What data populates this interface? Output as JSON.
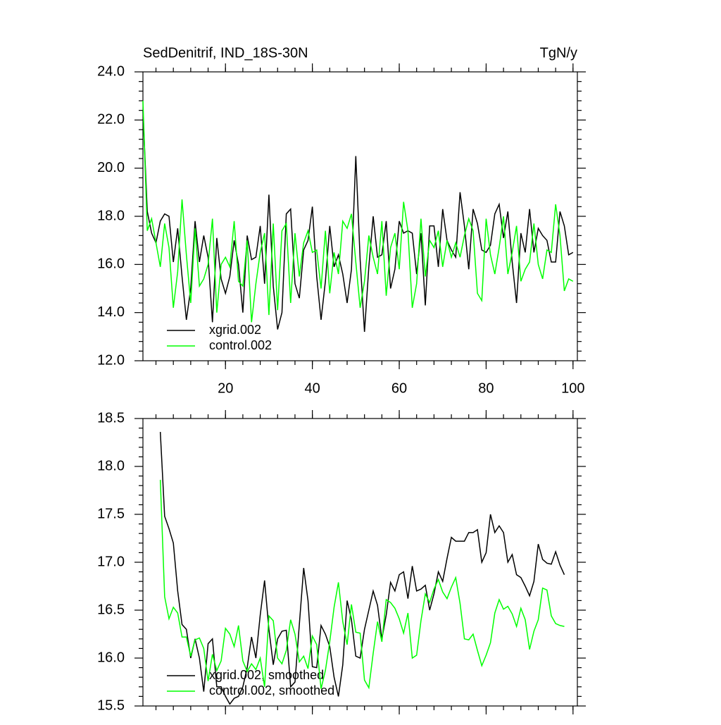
{
  "chart_data": [
    {
      "type": "line",
      "title": "SedDenitrif, IND_18S-30N",
      "right_title": "TgN/y",
      "x": [
        1,
        2,
        3,
        4,
        5,
        6,
        7,
        8,
        9,
        10,
        11,
        12,
        13,
        14,
        15,
        16,
        17,
        18,
        19,
        20,
        21,
        22,
        23,
        24,
        25,
        26,
        27,
        28,
        29,
        30,
        31,
        32,
        33,
        34,
        35,
        36,
        37,
        38,
        39,
        40,
        41,
        42,
        43,
        44,
        45,
        46,
        47,
        48,
        49,
        50,
        51,
        52,
        53,
        54,
        55,
        56,
        57,
        58,
        59,
        60,
        61,
        62,
        63,
        64,
        65,
        66,
        67,
        68,
        69,
        70,
        71,
        72,
        73,
        74,
        75,
        76,
        77,
        78,
        79,
        80,
        81,
        82,
        83,
        84,
        85,
        86,
        87,
        88,
        89,
        90,
        91,
        92,
        93,
        94,
        95,
        96,
        97,
        98,
        99,
        100
      ],
      "series": [
        {
          "name": "xgrid.002",
          "color": "#000000",
          "values": [
            22.4,
            18.2,
            17.3,
            16.9,
            17.8,
            18.1,
            18.0,
            16.1,
            17.5,
            15.5,
            13.7,
            15.0,
            17.8,
            16.1,
            17.2,
            16.3,
            13.6,
            17.1,
            15.4,
            14.8,
            15.5,
            17.0,
            16.0,
            14.0,
            17.2,
            16.2,
            16.3,
            17.6,
            15.2,
            18.9,
            15.1,
            13.3,
            14.0,
            18.1,
            18.3,
            15.2,
            14.6,
            16.6,
            17.0,
            18.4,
            15.5,
            13.7,
            15.3,
            17.6,
            15.9,
            16.4,
            15.6,
            14.4,
            15.8,
            20.5,
            16.2,
            13.2,
            15.9,
            18.0,
            16.3,
            16.4,
            17.8,
            15.0,
            15.8,
            17.8,
            17.3,
            17.4,
            17.3,
            15.6,
            17.3,
            14.3,
            17.6,
            17.6,
            15.9,
            18.3,
            17.0,
            16.6,
            16.3,
            19.0,
            17.6,
            15.8,
            18.3,
            17.7,
            16.6,
            16.5,
            16.8,
            18.1,
            18.5,
            17.1,
            18.2,
            16.1,
            14.4,
            17.3,
            16.5,
            18.3,
            16.5,
            17.5,
            17.2,
            17.0,
            16.1,
            16.1,
            18.2,
            17.6,
            16.4,
            16.5
          ]
        },
        {
          "name": "control.002",
          "color": "#00ff00",
          "values": [
            22.8,
            17.4,
            17.9,
            16.9,
            15.9,
            17.7,
            16.7,
            14.2,
            15.7,
            18.7,
            16.4,
            14.4,
            17.5,
            15.1,
            15.4,
            16.0,
            17.9,
            14.0,
            16.0,
            16.3,
            15.9,
            17.8,
            15.3,
            15.1,
            17.0,
            13.6,
            15.2,
            16.5,
            17.3,
            13.9,
            17.7,
            14.1,
            17.4,
            17.7,
            14.4,
            17.3,
            15.5,
            16.9,
            17.4,
            16.5,
            16.6,
            15.0,
            17.4,
            14.8,
            16.5,
            15.6,
            17.8,
            17.5,
            18.1,
            16.1,
            14.2,
            15.3,
            17.2,
            16.3,
            15.6,
            17.8,
            14.7,
            16.7,
            17.3,
            15.8,
            18.6,
            17.4,
            14.2,
            15.2,
            17.9,
            15.5,
            17.0,
            16.7,
            17.4,
            15.9,
            17.0,
            16.3,
            16.9,
            16.3,
            17.2,
            17.9,
            17.4,
            14.8,
            14.5,
            17.9,
            16.4,
            15.6,
            16.7,
            18.0,
            15.6,
            16.5,
            17.6,
            15.3,
            15.8,
            16.1,
            17.7,
            16.0,
            15.4,
            16.6,
            16.5,
            18.5,
            17.2,
            14.9,
            15.4,
            15.3
          ]
        }
      ],
      "xlim": [
        1,
        101
      ],
      "xticks": [
        20,
        40,
        60,
        80,
        100
      ],
      "show_xtick_labels": true,
      "ylim": [
        12,
        24
      ],
      "yticks": [
        {
          "value": 12,
          "label": "12.0"
        },
        {
          "value": 14,
          "label": "14.0"
        },
        {
          "value": 16,
          "label": "16.0"
        },
        {
          "value": 18,
          "label": "18.0"
        },
        {
          "value": 20,
          "label": "20.0"
        },
        {
          "value": 22,
          "label": "22.0"
        },
        {
          "value": 24,
          "label": "24.0"
        }
      ]
    },
    {
      "type": "line",
      "x": [
        5,
        6,
        7,
        8,
        9,
        10,
        11,
        12,
        13,
        14,
        15,
        16,
        17,
        18,
        19,
        20,
        21,
        22,
        23,
        24,
        25,
        26,
        27,
        28,
        29,
        30,
        31,
        32,
        33,
        34,
        35,
        36,
        37,
        38,
        39,
        40,
        41,
        42,
        43,
        44,
        45,
        46,
        47,
        48,
        49,
        50,
        51,
        52,
        53,
        54,
        55,
        56,
        57,
        58,
        59,
        60,
        61,
        62,
        63,
        64,
        65,
        66,
        67,
        68,
        69,
        70,
        71,
        72,
        73,
        74,
        75,
        76,
        77,
        78,
        79,
        80,
        81,
        82,
        83,
        84,
        85,
        86,
        87,
        88,
        89,
        90,
        91,
        92,
        93,
        94,
        95,
        96,
        97,
        98
      ],
      "series": [
        {
          "name": "xgrid.002, smoothed",
          "color": "#000000",
          "values": [
            18.36,
            17.48,
            17.35,
            17.2,
            16.7,
            16.35,
            16.3,
            16.0,
            16.2,
            16.0,
            15.65,
            16.15,
            16.2,
            15.7,
            15.7,
            15.6,
            15.52,
            15.58,
            15.6,
            15.7,
            15.9,
            16.22,
            16.0,
            16.45,
            16.81,
            16.3,
            15.93,
            16.2,
            16.28,
            16.29,
            15.7,
            15.75,
            16.35,
            16.94,
            16.6,
            15.91,
            15.9,
            16.34,
            16.25,
            16.12,
            15.8,
            15.6,
            15.93,
            16.6,
            16.4,
            16.02,
            16.0,
            16.3,
            16.5,
            16.7,
            16.55,
            16.2,
            16.45,
            16.79,
            16.7,
            16.87,
            16.9,
            16.62,
            16.96,
            16.7,
            16.72,
            16.76,
            16.5,
            16.67,
            16.9,
            16.8,
            17.04,
            17.26,
            17.22,
            17.22,
            17.22,
            17.31,
            17.31,
            17.34,
            17.0,
            17.1,
            17.5,
            17.31,
            17.38,
            17.31,
            17.0,
            17.08,
            16.87,
            16.84,
            16.75,
            16.65,
            16.8,
            17.19,
            17.03,
            16.99,
            16.98,
            17.11,
            16.97,
            16.87
          ]
        },
        {
          "name": "control.002, smoothed",
          "color": "#00ff00",
          "values": [
            17.86,
            16.64,
            16.41,
            16.53,
            16.47,
            16.22,
            16.22,
            16.02,
            16.19,
            16.21,
            16.1,
            15.76,
            16.04,
            15.87,
            15.97,
            16.31,
            16.25,
            16.12,
            16.34,
            15.97,
            15.86,
            15.94,
            15.88,
            16.0,
            15.7,
            16.44,
            16.39,
            16.0,
            15.94,
            16.08,
            16.4,
            16.25,
            15.96,
            16.02,
            15.89,
            16.23,
            16.14,
            15.68,
            15.87,
            16.17,
            16.53,
            16.79,
            16.38,
            16.14,
            16.56,
            16.27,
            16.26,
            15.77,
            15.69,
            16.05,
            16.38,
            16.17,
            16.61,
            16.58,
            16.52,
            16.41,
            16.26,
            16.47,
            16.0,
            16.03,
            16.39,
            16.67,
            16.58,
            16.72,
            16.82,
            16.69,
            16.62,
            16.74,
            16.84,
            16.57,
            16.2,
            16.19,
            16.25,
            16.08,
            15.92,
            16.03,
            16.16,
            16.47,
            16.61,
            16.51,
            16.54,
            16.46,
            16.33,
            16.52,
            16.4,
            16.09,
            16.28,
            16.4,
            16.73,
            16.71,
            16.44,
            16.36,
            16.34,
            16.33
          ]
        }
      ],
      "xlim": [
        1,
        101
      ],
      "xticks": [
        20,
        40,
        60,
        80,
        100
      ],
      "show_xtick_labels": false,
      "ylim": [
        15.5,
        18.5
      ],
      "yticks": [
        15.5,
        {
          "value": 16,
          "label": "16.0"
        },
        16.5,
        {
          "value": 17,
          "label": "17.0"
        },
        17.5,
        {
          "value": 18,
          "label": "18.0"
        },
        18.5
      ]
    }
  ]
}
